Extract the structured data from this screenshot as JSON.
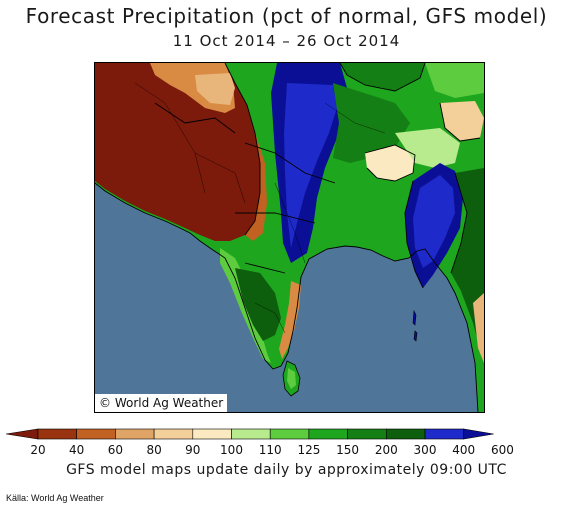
{
  "header": {
    "title": "Forecast Precipitation (pct of normal, GFS model)",
    "date_range": "11 Oct 2014 – 26 Oct 2014"
  },
  "map": {
    "credit": "© World Ag Weather"
  },
  "legend": {
    "colors": [
      "#7c1a0c",
      "#9a3410",
      "#c26222",
      "#e0a566",
      "#f3cf99",
      "#fbeac1",
      "#b8ea8e",
      "#5ecc3f",
      "#1ea61e",
      "#147f14",
      "#0d5f0d",
      "#1e2ac9",
      "#0b0f96"
    ],
    "labels": [
      "20",
      "40",
      "60",
      "80",
      "90",
      "100",
      "110",
      "125",
      "150",
      "200",
      "300",
      "400",
      "600"
    ]
  },
  "footer": {
    "note": "GFS model maps update daily by approximately 09:00 UTC",
    "source": "Källa: World Ag Weather"
  }
}
